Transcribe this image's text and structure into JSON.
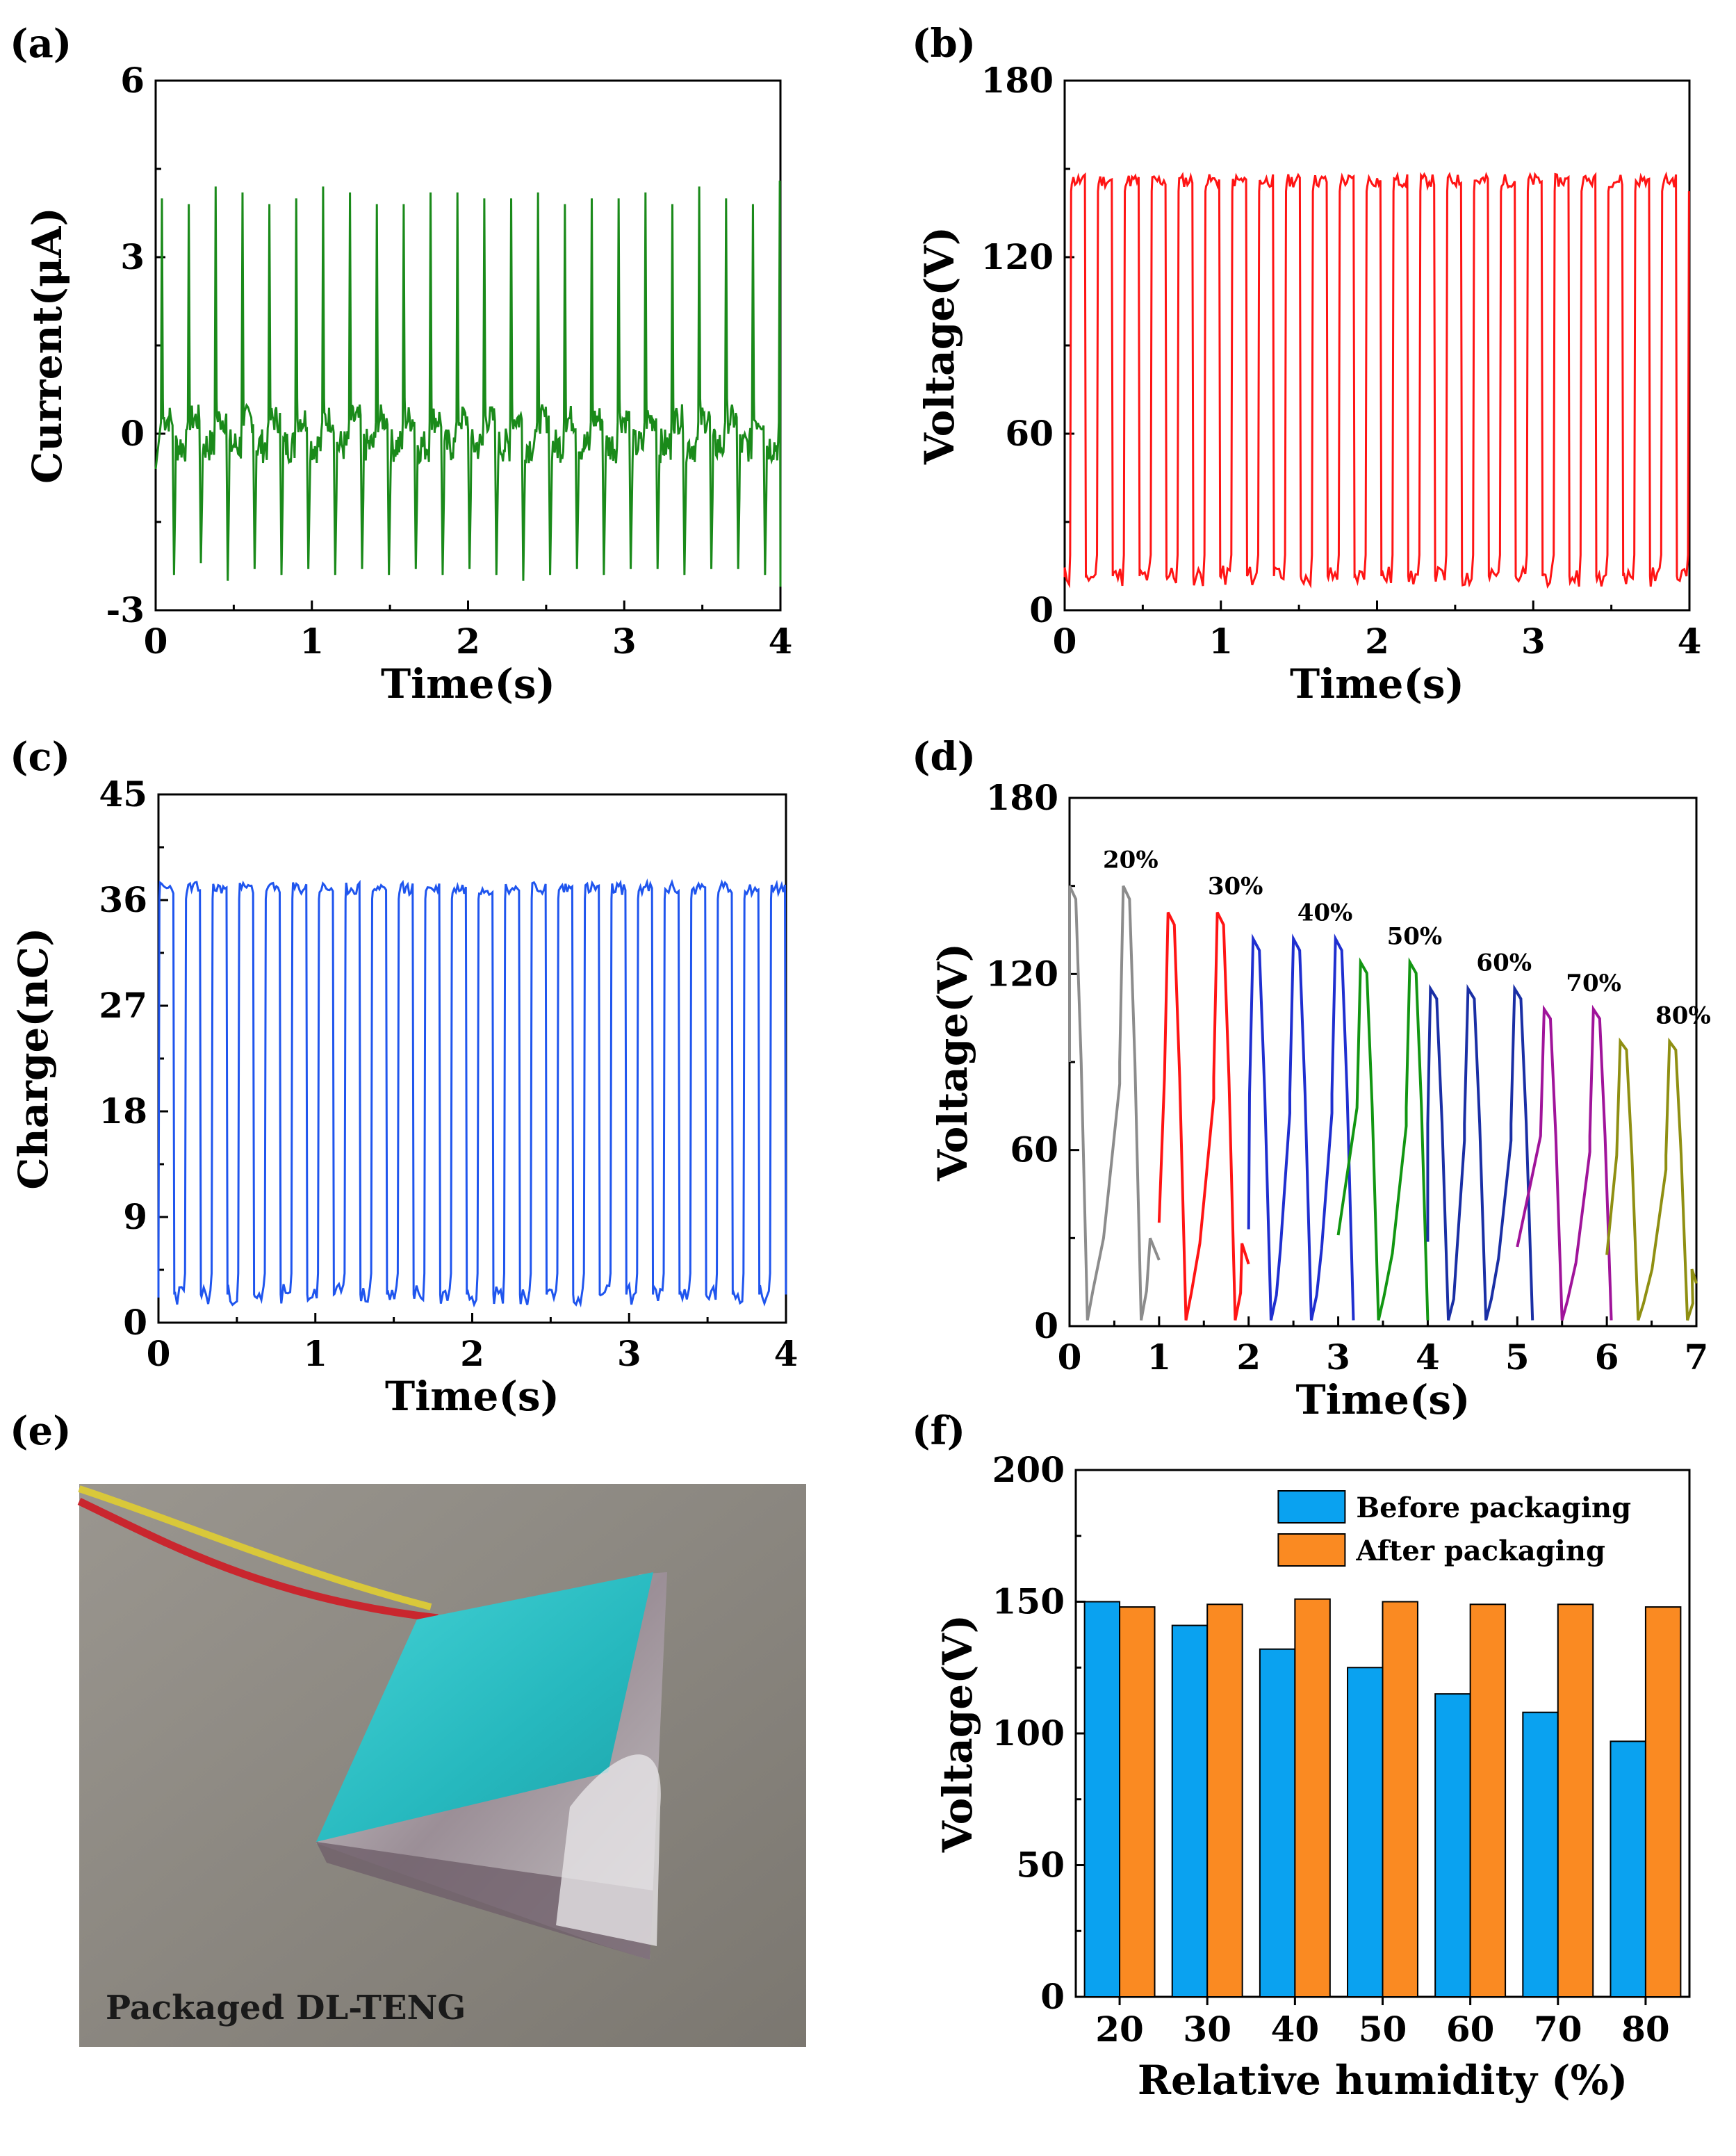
{
  "panel_labels": {
    "a": "(a)",
    "b": "(b)",
    "c": "(c)",
    "d": "(d)",
    "e": "(e)",
    "f": "(f)"
  },
  "photo": {
    "caption": "Packaged DL-TENG"
  },
  "colors": {
    "current_trace": "#1a8a1a",
    "voltage_trace": "#ff1414",
    "charge_trace": "#1f55ee",
    "humidity_traces": [
      "#8c8c8c",
      "#ff1414",
      "#1f2fd0",
      "#129612",
      "#1a2fa5",
      "#a0149a",
      "#8f8f12"
    ],
    "bar_before": "#0aa2f0",
    "bar_after": "#fa8a22",
    "photo_bg": "#8a8680",
    "device_top": "#2fc4c8"
  },
  "chart_data": [
    {
      "id": "a",
      "type": "line",
      "title": "",
      "xlabel": "Time(s)",
      "ylabel": "Current(μA)",
      "xlim": [
        0,
        4
      ],
      "ylim": [
        -3,
        6
      ],
      "xticks": [
        0,
        1,
        2,
        3,
        4
      ],
      "yticks": [
        -3,
        0,
        3,
        6
      ],
      "series": [
        {
          "name": "Current",
          "signal": "spike",
          "period_s": 0.172,
          "first_peak_s": 0.04,
          "baseline": 0.0,
          "peaks": [
            4.0,
            3.9,
            4.2,
            4.1,
            3.9,
            4.0,
            4.2,
            4.1,
            3.9,
            3.9,
            4.1,
            4.1,
            4.0,
            4.0,
            4.1,
            3.9,
            4.0,
            4.0,
            4.1,
            3.9,
            4.2,
            4.0,
            3.9,
            4.3
          ],
          "troughs": [
            -2.4,
            -2.2,
            -2.5,
            -2.3,
            -2.4,
            -2.3,
            -2.4,
            -2.3,
            -2.4,
            -2.3,
            -2.4,
            -2.3,
            -2.4,
            -2.5,
            -2.4,
            -2.3,
            -2.4,
            -2.3,
            -2.3,
            -2.4,
            -2.3,
            -2.3,
            -2.4,
            -2.6
          ]
        }
      ]
    },
    {
      "id": "b",
      "type": "line",
      "title": "",
      "xlabel": "Time(s)",
      "ylabel": "Voltage(V)",
      "xlim": [
        0,
        4
      ],
      "ylim": [
        0,
        180
      ],
      "xticks": [
        0,
        1,
        2,
        3,
        4
      ],
      "yticks": [
        0,
        60,
        120,
        180
      ],
      "series": [
        {
          "name": "Voltage",
          "signal": "square",
          "period_s": 0.172,
          "first_rise_s": 0.035,
          "duty": 0.55,
          "high": 146,
          "low": 8
        }
      ]
    },
    {
      "id": "c",
      "type": "line",
      "title": "",
      "xlabel": "Time(s)",
      "ylabel": "Charge(nC)",
      "xlim": [
        0,
        4
      ],
      "ylim": [
        0,
        45
      ],
      "xticks": [
        0,
        1,
        2,
        3,
        4
      ],
      "yticks": [
        0,
        9,
        18,
        27,
        36,
        45
      ],
      "series": [
        {
          "name": "Charge",
          "signal": "square",
          "period_s": 0.1695,
          "first_rise_s": 0.0,
          "duty": 0.56,
          "high": 37,
          "low": 1.5
        }
      ]
    },
    {
      "id": "d",
      "type": "line",
      "title": "",
      "xlabel": "Time(s)",
      "ylabel": "Voltage(V)",
      "xlim": [
        0,
        7
      ],
      "ylim": [
        0,
        180
      ],
      "xticks": [
        0,
        1,
        2,
        3,
        4,
        5,
        6,
        7
      ],
      "yticks": [
        0,
        60,
        120,
        180
      ],
      "annotations": [
        "20%",
        "30%",
        "40%",
        "50%",
        "60%",
        "70%",
        "80%"
      ],
      "series": [
        {
          "name": "20%",
          "start_s": 0.0,
          "peaks_s": [
            0.0,
            0.6
          ],
          "peak_v": 150
        },
        {
          "name": "30%",
          "start_s": 1.0,
          "peaks_s": [
            1.1,
            1.65
          ],
          "peak_v": 141
        },
        {
          "name": "40%",
          "start_s": 2.0,
          "peaks_s": [
            2.05,
            2.5,
            2.97
          ],
          "peak_v": 132
        },
        {
          "name": "50%",
          "start_s": 3.0,
          "peaks_s": [
            3.25,
            3.8
          ],
          "peak_v": 124
        },
        {
          "name": "60%",
          "start_s": 4.0,
          "peaks_s": [
            4.03,
            4.45,
            4.97
          ],
          "peak_v": 115
        },
        {
          "name": "70%",
          "start_s": 5.0,
          "peaks_s": [
            5.3,
            5.85
          ],
          "peak_v": 108
        },
        {
          "name": "80%",
          "start_s": 6.0,
          "peaks_s": [
            6.15,
            6.7
          ],
          "peak_v": 97
        }
      ]
    },
    {
      "id": "f",
      "type": "bar",
      "title": "",
      "xlabel": "Relative humidity (%)",
      "ylabel": "Voltage(V)",
      "ylim": [
        0,
        200
      ],
      "yticks": [
        0,
        50,
        100,
        150,
        200
      ],
      "categories": [
        "20",
        "30",
        "40",
        "50",
        "60",
        "70",
        "80"
      ],
      "legend_position": "top-right",
      "series": [
        {
          "name": "Before packaging",
          "values": [
            150,
            141,
            132,
            125,
            115,
            108,
            97
          ]
        },
        {
          "name": "After packaging",
          "values": [
            148,
            149,
            151,
            150,
            149,
            149,
            148
          ]
        }
      ]
    }
  ]
}
